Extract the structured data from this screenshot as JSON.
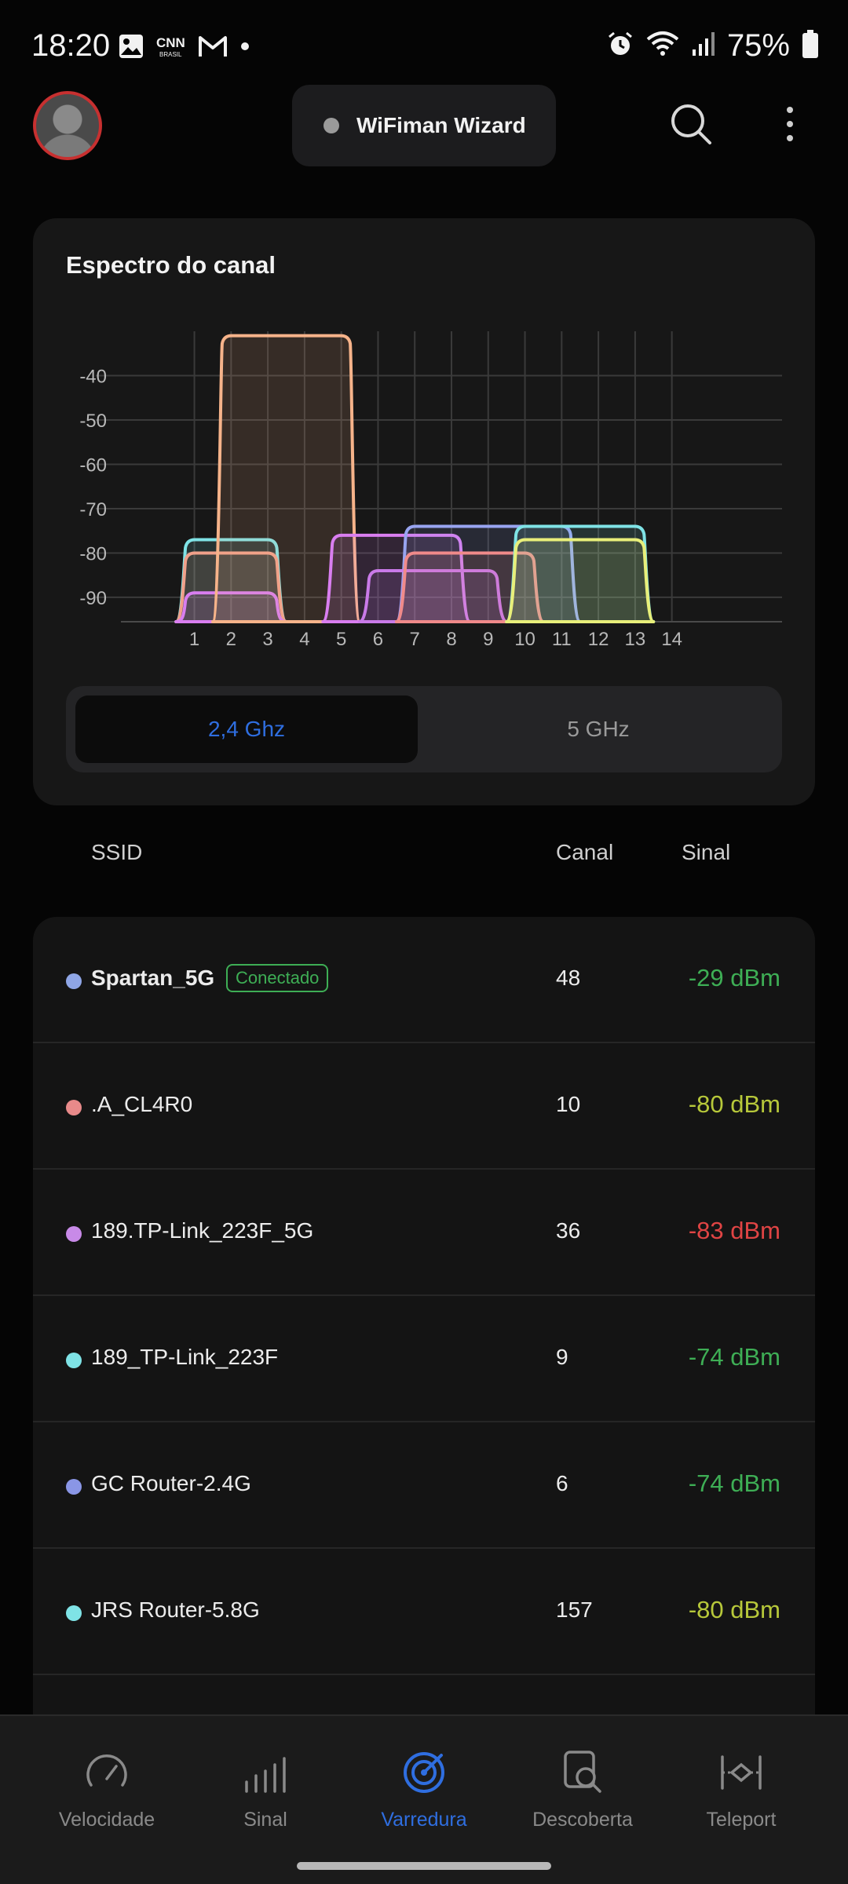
{
  "status_bar": {
    "time": "18:20",
    "battery": "75%",
    "left_icons": [
      "gallery-icon",
      "cnn-brasil-icon",
      "gmail-icon",
      "dot-icon"
    ],
    "right_icons": [
      "alarm-icon",
      "wifi-icon",
      "cell-signal-icon",
      "battery-icon"
    ]
  },
  "header": {
    "wizard_label": "WiFiman Wizard",
    "icons": [
      "avatar",
      "search-icon",
      "more-vert-icon"
    ]
  },
  "spectrum": {
    "title": "Espectro do canal",
    "band_options": [
      "2,4 Ghz",
      "5 GHz"
    ],
    "selected_band": "2,4 Ghz",
    "colors": {
      "active": "#2f6ee0",
      "inactive": "#9a9a9a"
    }
  },
  "chart_data": {
    "type": "area",
    "title": "Espectro do canal",
    "xlabel": "",
    "ylabel": "",
    "x_ticks": [
      "1",
      "2",
      "3",
      "4",
      "5",
      "6",
      "7",
      "8",
      "9",
      "10",
      "11",
      "12",
      "13",
      "14"
    ],
    "y_ticks": [
      "-40",
      "-50",
      "-60",
      "-70",
      "-80",
      "-90"
    ],
    "xlim": [
      -1,
      17
    ],
    "ylim": [
      -95.5,
      -30
    ],
    "grid": true,
    "series": [
      {
        "start": 0.5,
        "end": 3.5,
        "peak": -77,
        "color": "#7fe3e6"
      },
      {
        "start": 0.5,
        "end": 3.5,
        "peak": -80,
        "color": "#f0a08a"
      },
      {
        "start": 0.5,
        "end": 3.5,
        "peak": -89,
        "color": "#d97ef0"
      },
      {
        "start": 1.5,
        "end": 5.5,
        "peak": -31,
        "color": "#f6b38a"
      },
      {
        "start": 4.5,
        "end": 8.5,
        "peak": -76,
        "color": "#d97ef0"
      },
      {
        "start": 6.5,
        "end": 11.5,
        "peak": -74,
        "color": "#98a4f0"
      },
      {
        "start": 5.5,
        "end": 9.5,
        "peak": -84,
        "color": "#c97ae8"
      },
      {
        "start": 6.5,
        "end": 10.5,
        "peak": -80,
        "color": "#f08a8a"
      },
      {
        "start": 9.5,
        "end": 13.5,
        "peak": -74,
        "color": "#7fe3e6"
      },
      {
        "start": 9.5,
        "end": 13.5,
        "peak": -77,
        "color": "#e8ef7a"
      }
    ]
  },
  "table_header": {
    "ssid": "SSID",
    "canal": "Canal",
    "sinal": "Sinal"
  },
  "networks": [
    {
      "ssid": "Spartan_5G",
      "canal": "48",
      "signal": "-29 dBm",
      "dot_color": "#8fa6e6",
      "signal_color": "#3eae55",
      "badge": "Conectado",
      "bold": true
    },
    {
      "ssid": ".A_CL4R0",
      "canal": "10",
      "signal": "-80 dBm",
      "dot_color": "#e88a8a",
      "signal_color": "#b7c83a"
    },
    {
      "ssid": "189.TP-Link_223F_5G",
      "canal": "36",
      "signal": "-83 dBm",
      "dot_color": "#c88ae8",
      "signal_color": "#e04444"
    },
    {
      "ssid": "189_TP-Link_223F",
      "canal": "9",
      "signal": "-74 dBm",
      "dot_color": "#7fe3e6",
      "signal_color": "#3eae55"
    },
    {
      "ssid": "GC Router-2.4G",
      "canal": "6",
      "signal": "-74 dBm",
      "dot_color": "#8a96e6",
      "signal_color": "#3eae55"
    },
    {
      "ssid": "JRS Router-5.8G",
      "canal": "157",
      "signal": "-80 dBm",
      "dot_color": "#7fe3e6",
      "signal_color": "#b7c83a"
    }
  ],
  "bottom_nav": {
    "items": [
      {
        "label": "Velocidade",
        "icon": "speedometer-icon"
      },
      {
        "label": "Sinal",
        "icon": "signal-bars-icon"
      },
      {
        "label": "Varredura",
        "icon": "radar-scan-icon"
      },
      {
        "label": "Descoberta",
        "icon": "device-search-icon"
      },
      {
        "label": "Teleport",
        "icon": "teleport-icon"
      }
    ],
    "active": "Varredura",
    "colors": {
      "active": "#2f6ee0",
      "inactive": "#8a8a8a"
    }
  }
}
